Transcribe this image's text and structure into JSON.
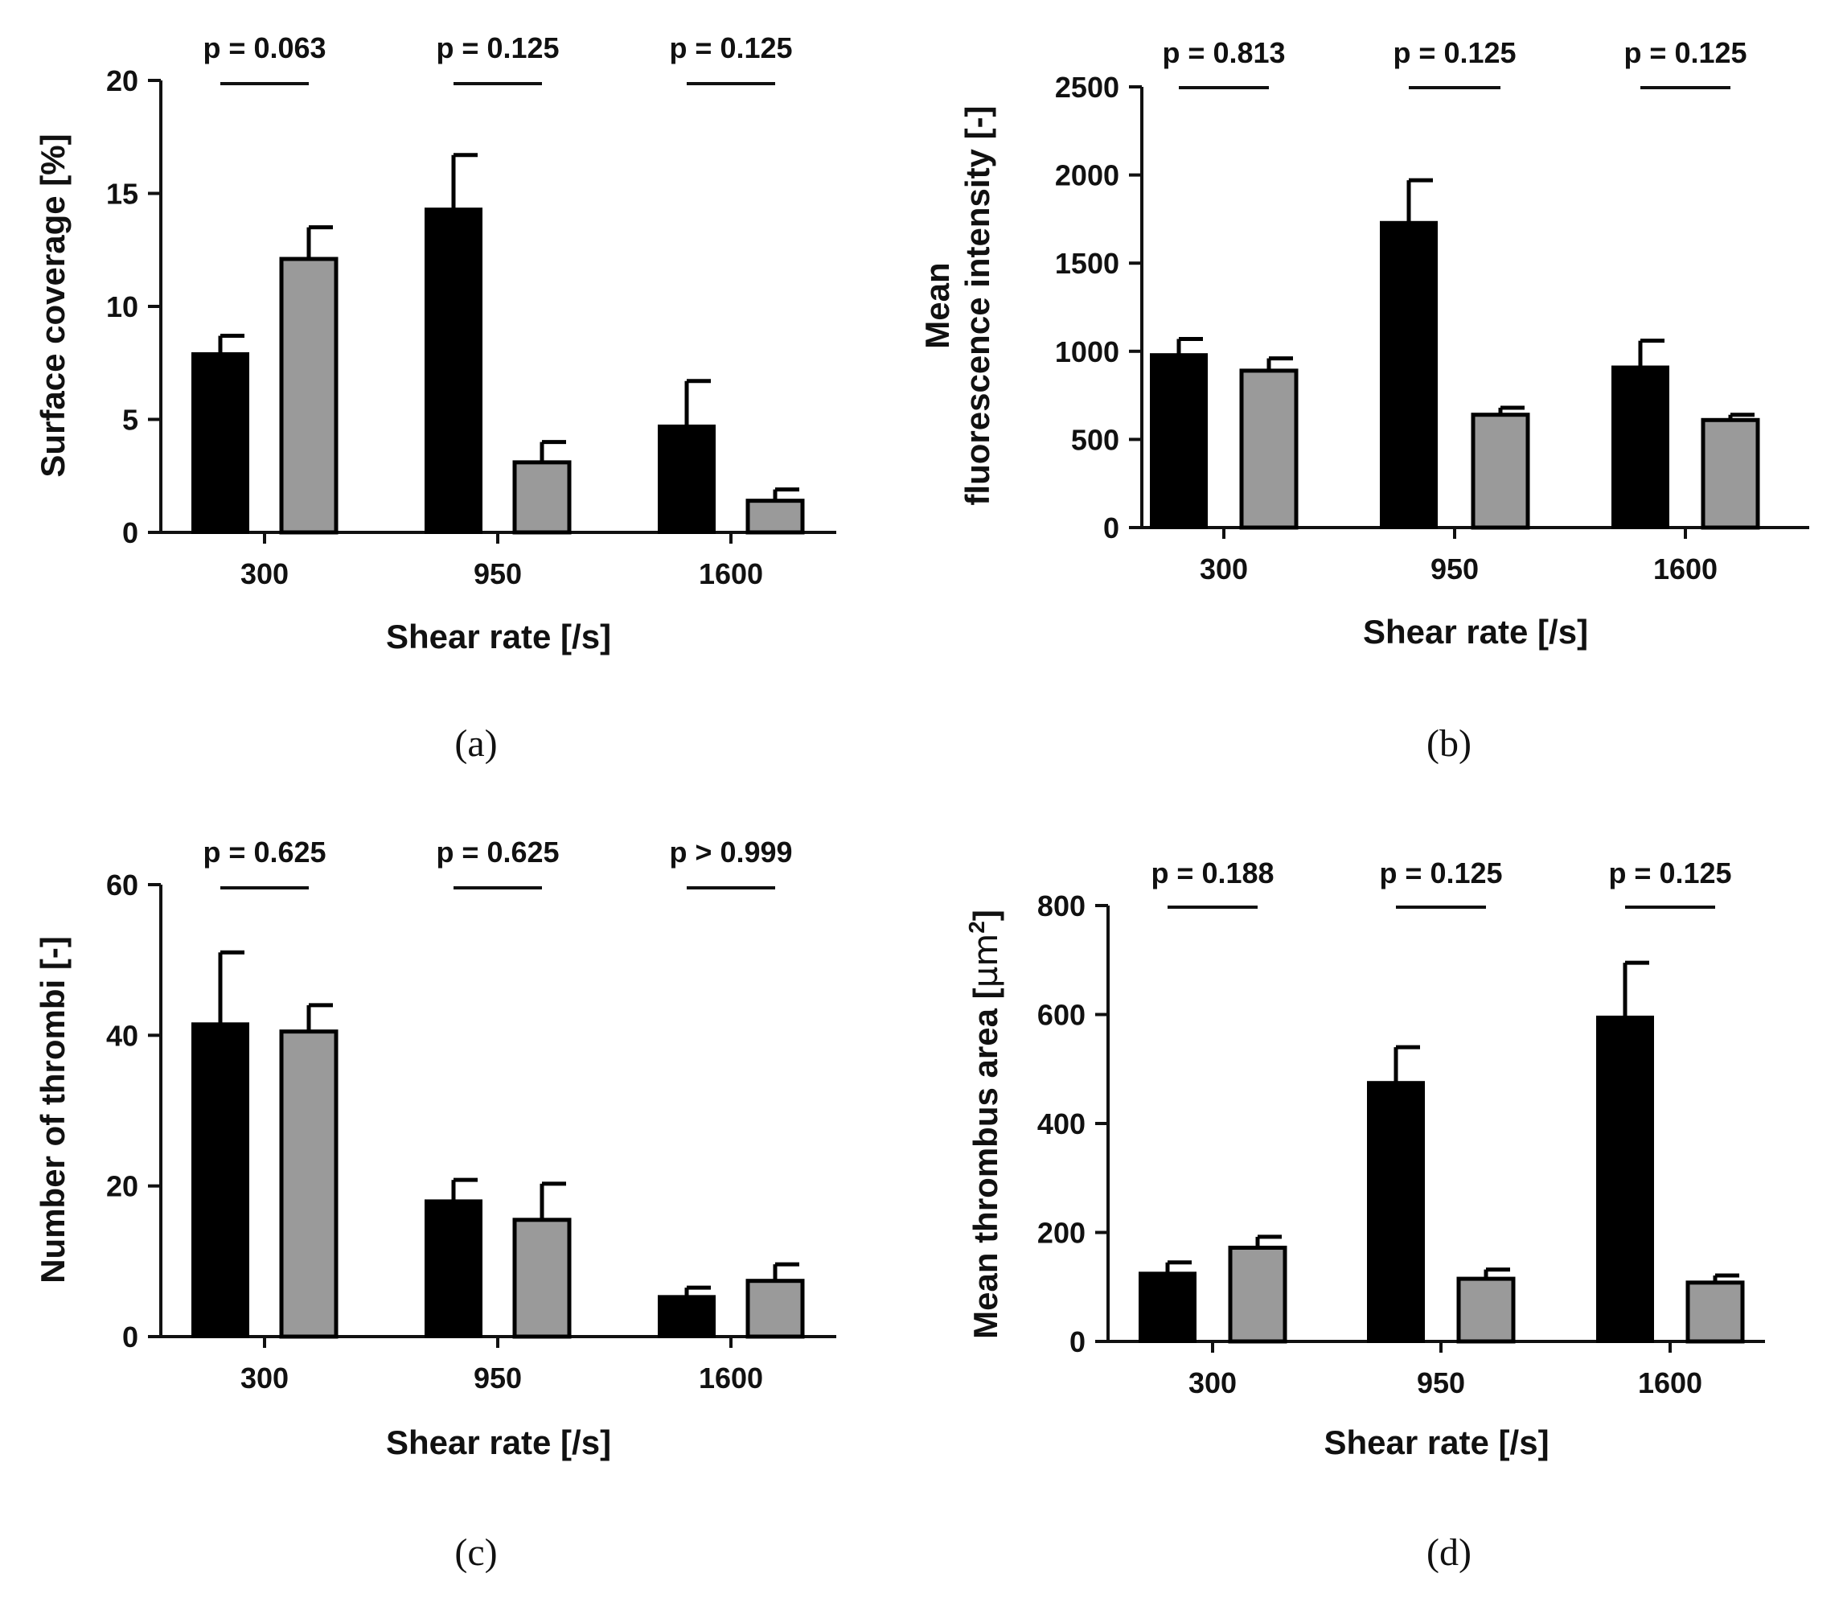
{
  "figure_panels": [
    "a",
    "b",
    "c",
    "d"
  ],
  "chart_data": [
    {
      "type": "bar",
      "panel": "a",
      "caption": "(a)",
      "xlabel": "Shear rate [/s]",
      "ylabel": "Surface coverage [%]",
      "ylabel_lines": [
        "Surface coverage [%]"
      ],
      "ylim": [
        0,
        20
      ],
      "yticks": [
        0,
        5,
        10,
        15,
        20
      ],
      "categories": [
        "300",
        "950",
        "1600"
      ],
      "series": [
        {
          "name": "black",
          "color": "#000000",
          "values": [
            7.9,
            14.3,
            4.7
          ],
          "errors": [
            0.8,
            2.4,
            2.0
          ]
        },
        {
          "name": "grey",
          "color": "#9a9a9a",
          "values": [
            12.1,
            3.1,
            1.4
          ],
          "errors": [
            1.4,
            0.9,
            0.5
          ]
        }
      ],
      "pvalues": [
        "p = 0.063",
        "p = 0.125",
        "p = 0.125"
      ]
    },
    {
      "type": "bar",
      "panel": "b",
      "caption": "(b)",
      "xlabel": "Shear rate [/s]",
      "ylabel": "Mean fluorescence intensity [-]",
      "ylabel_lines": [
        "Mean",
        "fluorescence intensity [-]"
      ],
      "ylim": [
        0,
        2500
      ],
      "yticks": [
        0,
        500,
        1000,
        1500,
        2000,
        2500
      ],
      "categories": [
        "300",
        "950",
        "1600"
      ],
      "series": [
        {
          "name": "black",
          "color": "#000000",
          "values": [
            980,
            1730,
            910
          ],
          "errors": [
            90,
            240,
            150
          ]
        },
        {
          "name": "grey",
          "color": "#9a9a9a",
          "values": [
            890,
            640,
            610
          ],
          "errors": [
            70,
            40,
            30
          ]
        }
      ],
      "pvalues": [
        "p = 0.813",
        "p = 0.125",
        "p = 0.125"
      ]
    },
    {
      "type": "bar",
      "panel": "c",
      "caption": "(c)",
      "xlabel": "Shear rate [/s]",
      "ylabel": "Number of thrombi [-]",
      "ylabel_lines": [
        "Number of thrombi [-]"
      ],
      "ylim": [
        0,
        60
      ],
      "yticks": [
        0,
        20,
        40,
        60
      ],
      "categories": [
        "300",
        "950",
        "1600"
      ],
      "series": [
        {
          "name": "black",
          "color": "#000000",
          "values": [
            41.5,
            18.0,
            5.3
          ],
          "errors": [
            9.5,
            2.8,
            1.2
          ]
        },
        {
          "name": "grey",
          "color": "#9a9a9a",
          "values": [
            40.5,
            15.5,
            7.4
          ],
          "errors": [
            3.5,
            4.8,
            2.2
          ]
        }
      ],
      "pvalues": [
        "p = 0.625",
        "p = 0.625",
        "p > 0.999"
      ]
    },
    {
      "type": "bar",
      "panel": "d",
      "caption": "(d)",
      "xlabel": "Shear rate [/s]",
      "ylabel": "Mean thrombus area [µm²]",
      "ylabel_main": "Mean thrombus area [",
      "ylabel_unit": "µm",
      "ylabel_sup": "2",
      "ylabel_end": "]",
      "ylim": [
        0,
        800
      ],
      "yticks": [
        0,
        200,
        400,
        600,
        800
      ],
      "categories": [
        "300",
        "950",
        "1600"
      ],
      "series": [
        {
          "name": "black",
          "color": "#000000",
          "values": [
            125,
            475,
            595
          ],
          "errors": [
            20,
            65,
            100
          ]
        },
        {
          "name": "grey",
          "color": "#9a9a9a",
          "values": [
            172,
            115,
            108
          ],
          "errors": [
            20,
            17,
            13
          ]
        }
      ],
      "pvalues": [
        "p = 0.188",
        "p = 0.125",
        "p = 0.125"
      ]
    }
  ]
}
